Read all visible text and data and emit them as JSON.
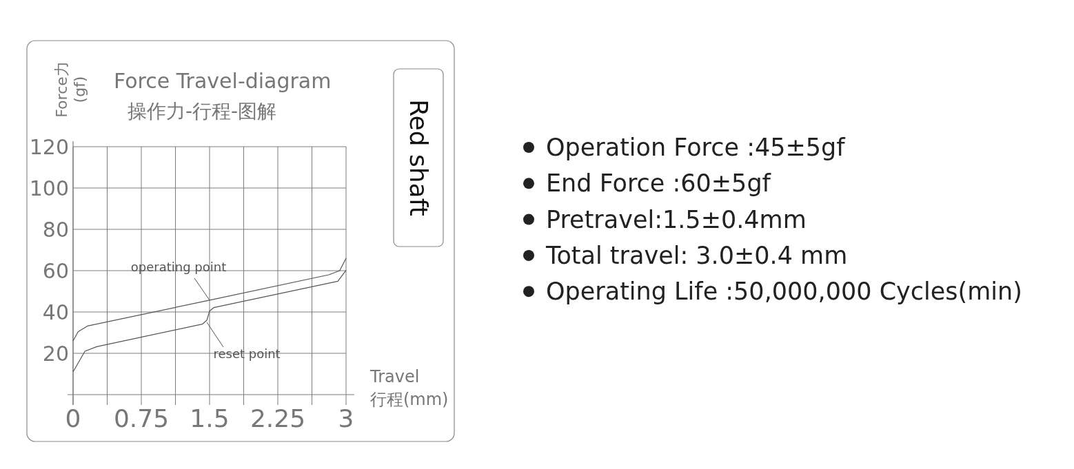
{
  "chart_data": {
    "type": "line",
    "title": "Force Travel-diagram",
    "subtitle": "操作力-行程-图解",
    "xlabel": "Travel\n行程(mm)",
    "ylabel": "Force力\n(gf)",
    "xlim": [
      0,
      3
    ],
    "ylim": [
      0,
      120
    ],
    "xticks": [
      0,
      {
        "value": 0.375,
        "label": null
      },
      0.75,
      {
        "value": 1.125,
        "label": null
      },
      1.5,
      {
        "value": 1.875,
        "label": null
      },
      2.25,
      {
        "value": 2.625,
        "label": null
      },
      3
    ],
    "yticks": [
      20,
      40,
      60,
      80,
      100,
      120
    ],
    "grid": true,
    "marker": "none",
    "line_style": "solid",
    "series": [
      {
        "color": "#555555",
        "x": [
          0,
          0.055,
          0.157,
          1.5,
          2.81,
          2.93,
          3
        ],
        "values": [
          26,
          30.4,
          33.2,
          45.7,
          58,
          60,
          66
        ]
      },
      {
        "color": "#555555",
        "x": [
          0,
          0.13,
          0.26,
          1.42,
          1.47,
          1.5,
          1.545,
          2.91,
          3
        ],
        "values": [
          11,
          21,
          23.2,
          34.1,
          36,
          40.4,
          42.1,
          54.9,
          60.2
        ]
      }
    ],
    "annotations": [
      {
        "text": "operating point",
        "x": 1.5,
        "y": 45.7
      },
      {
        "text": "reset point",
        "x": 1.47,
        "y": 35
      },
      "Red shaft",
      "Operation Force :45±5gf",
      "End Force :60±5gf",
      "Pretravel:1.5±0.4mm",
      "Total travel: 3.0±0.4 mm",
      "Operating Life :50,000,000 Cycles(min)"
    ]
  }
}
